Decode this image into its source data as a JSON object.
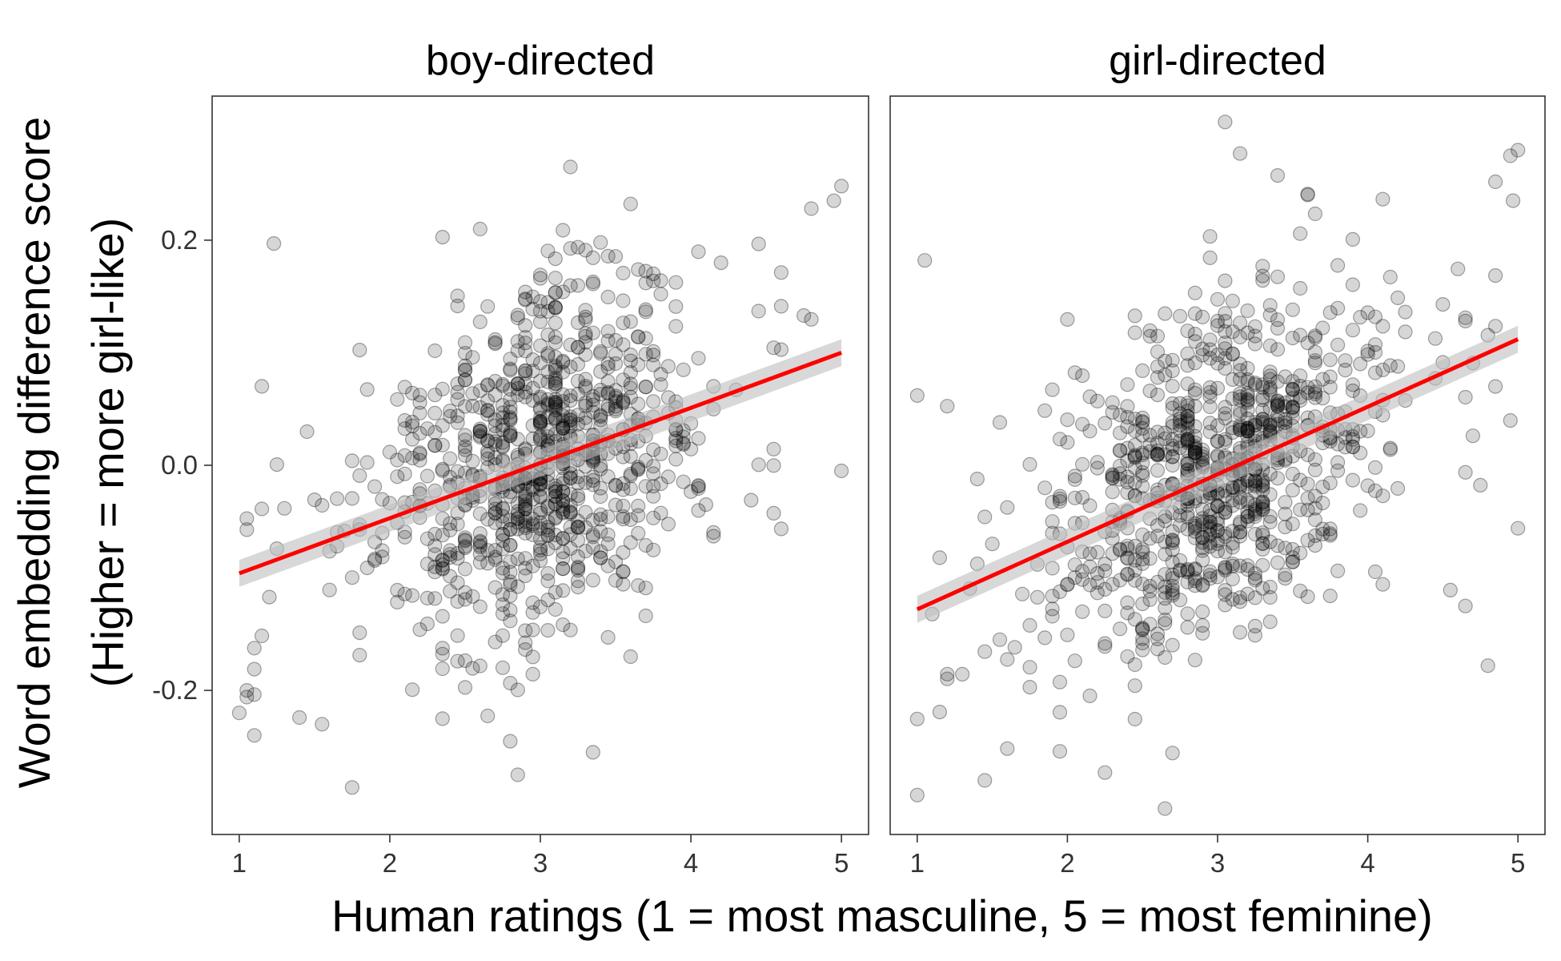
{
  "chart_data": {
    "type": "scatter",
    "xlabel": "Human ratings (1 = most masculine, 5 = most feminine)",
    "ylabel_line1": "Word embedding difference score",
    "ylabel_line2": "(Higher = more girl-like)",
    "xlim": [
      0.82,
      5.18
    ],
    "ylim": [
      -0.328,
      0.328
    ],
    "x_ticks": [
      1,
      2,
      3,
      4,
      5
    ],
    "y_ticks": [
      -0.2,
      0.0,
      0.2
    ],
    "y_tick_labels": [
      "-0.2",
      "0.0",
      "0.2"
    ],
    "grid": false,
    "point_color": "#000000",
    "fit_color": "#ff0000",
    "band_color": "#bebebe",
    "panels": [
      {
        "title": "boy-directed",
        "fit": {
          "x": [
            1,
            5
          ],
          "y": [
            -0.096,
            0.1
          ],
          "se": [
            0.012,
            0.012
          ]
        },
        "point_count": 900,
        "spread_sd": 0.075,
        "seed": 17,
        "sample_points": [
          {
            "x": 1.0,
            "y": -0.22
          },
          {
            "x": 1.05,
            "y": -0.2
          },
          {
            "x": 1.1,
            "y": -0.24
          },
          {
            "x": 1.23,
            "y": 0.197
          },
          {
            "x": 1.55,
            "y": -0.23
          },
          {
            "x": 2.85,
            "y": -0.275
          },
          {
            "x": 3.2,
            "y": 0.265
          },
          {
            "x": 3.35,
            "y": -0.255
          },
          {
            "x": 5.0,
            "y": 0.248
          },
          {
            "x": 4.95,
            "y": 0.235
          },
          {
            "x": 4.8,
            "y": 0.228
          },
          {
            "x": 5.0,
            "y": -0.005
          }
        ]
      },
      {
        "title": "girl-directed",
        "fit": {
          "x": [
            1,
            5
          ],
          "y": [
            -0.128,
            0.112
          ],
          "se": [
            0.012,
            0.012
          ]
        },
        "point_count": 900,
        "spread_sd": 0.075,
        "seed": 29,
        "sample_points": [
          {
            "x": 1.0,
            "y": -0.293
          },
          {
            "x": 1.0,
            "y": 0.062
          },
          {
            "x": 1.05,
            "y": 0.182
          },
          {
            "x": 2.65,
            "y": -0.305
          },
          {
            "x": 3.05,
            "y": 0.305
          },
          {
            "x": 3.15,
            "y": 0.277
          },
          {
            "x": 4.95,
            "y": 0.275
          },
          {
            "x": 5.0,
            "y": 0.28
          },
          {
            "x": 4.8,
            "y": -0.178
          },
          {
            "x": 5.0,
            "y": -0.056
          },
          {
            "x": 1.45,
            "y": -0.28
          },
          {
            "x": 2.25,
            "y": -0.273
          }
        ]
      }
    ]
  }
}
